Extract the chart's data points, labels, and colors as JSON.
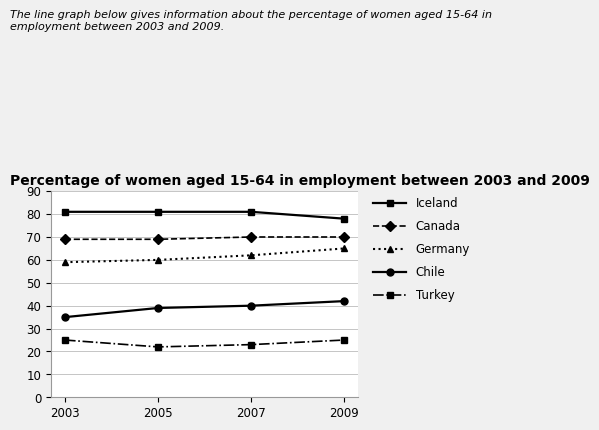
{
  "title": "Percentage of women aged 15-64 in employment between 2003 and 2009",
  "subtitle": "The line graph below gives information about the percentage of women aged 15-64 in\nemployment between 2003 and 2009.",
  "years": [
    2003,
    2005,
    2007,
    2009
  ],
  "series": {
    "Iceland": [
      81,
      81,
      81,
      78
    ],
    "Canada": [
      69,
      69,
      70,
      70
    ],
    "Germany": [
      59,
      60,
      62,
      65
    ],
    "Chile": [
      35,
      39,
      40,
      42
    ],
    "Turkey": [
      25,
      22,
      23,
      25
    ]
  },
  "ylim": [
    0,
    90
  ],
  "yticks": [
    0,
    10,
    20,
    30,
    40,
    50,
    60,
    70,
    80,
    90
  ],
  "background_color": "#f0f0f0",
  "plot_bg_color": "#ffffff",
  "grid_color": "#bbbbbb",
  "line_styles": {
    "Iceland": {
      "linestyle": "-",
      "marker": "s",
      "markersize": 5,
      "linewidth": 1.6
    },
    "Canada": {
      "linestyle": "--",
      "marker": "D",
      "markersize": 5,
      "linewidth": 1.2
    },
    "Germany": {
      "linestyle": ":",
      "marker": "^",
      "markersize": 5,
      "linewidth": 1.5
    },
    "Chile": {
      "linestyle": "-",
      "marker": "o",
      "markersize": 5,
      "linewidth": 1.6
    },
    "Turkey": {
      "linestyle": "-.",
      "marker": "s",
      "markersize": 5,
      "linewidth": 1.2
    }
  },
  "subtitle_fontsize": 8,
  "title_fontsize": 10,
  "tick_fontsize": 8.5,
  "legend_fontsize": 8.5
}
